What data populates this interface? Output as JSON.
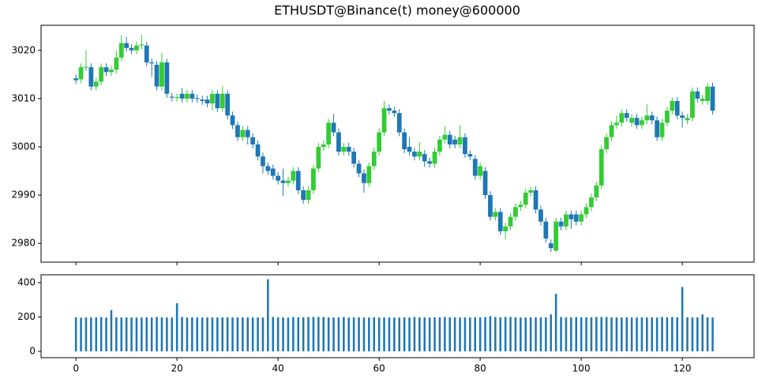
{
  "chart_data": [
    {
      "type": "candlestick",
      "title": "ETHUSDT@Binance(t) money@600000",
      "up_color": "#33cc33",
      "down_color": "#1f77b4",
      "xlim": [
        -6.9,
        134.2
      ],
      "xticks": [
        0,
        20,
        40,
        60,
        80,
        100,
        120
      ],
      "ylim": [
        2976.1,
        3025.2
      ],
      "yticks": [
        2980,
        2990,
        3000,
        3010,
        3020
      ],
      "x": [
        0,
        1,
        2,
        3,
        4,
        5,
        6,
        7,
        8,
        9,
        10,
        11,
        12,
        13,
        14,
        15,
        16,
        17,
        18,
        19,
        20,
        21,
        22,
        23,
        24,
        25,
        26,
        27,
        28,
        29,
        30,
        31,
        32,
        33,
        34,
        35,
        36,
        37,
        38,
        39,
        40,
        41,
        42,
        43,
        44,
        45,
        46,
        47,
        48,
        49,
        50,
        51,
        52,
        53,
        54,
        55,
        56,
        57,
        58,
        59,
        60,
        61,
        62,
        63,
        64,
        65,
        66,
        67,
        68,
        69,
        70,
        71,
        72,
        73,
        74,
        75,
        76,
        77,
        78,
        79,
        80,
        81,
        82,
        83,
        84,
        85,
        86,
        87,
        88,
        89,
        90,
        91,
        92,
        93,
        94,
        95,
        96,
        97,
        98,
        99,
        100,
        101,
        102,
        103,
        104,
        105,
        106,
        107,
        108,
        109,
        110,
        111,
        112,
        113,
        114,
        115,
        116,
        117,
        118,
        119,
        120,
        121,
        122,
        123,
        124,
        125,
        126
      ],
      "open": [
        3014.2,
        3014,
        3016.5,
        3016.5,
        3012.5,
        3013.5,
        3016.5,
        3015.5,
        3016,
        3018.5,
        3021.5,
        3020.5,
        3020,
        3021,
        3021,
        3017.5,
        3017,
        3012.5,
        3017.5,
        3010.4,
        3010.2,
        3011,
        3010,
        3011,
        3010.1,
        3009.8,
        3009.8,
        3009,
        3011,
        3008,
        3011,
        3006.5,
        3004.5,
        3002,
        3003.5,
        3002,
        3000.5,
        2998,
        2996,
        2995.5,
        2994,
        2993,
        2992.5,
        2993,
        2995,
        2991,
        2989,
        2991,
        2995.5,
        3000,
        3000.5,
        3005,
        3003,
        2999,
        3000,
        2999,
        2996.5,
        2994.5,
        2992.5,
        2996,
        2999,
        3003,
        3008,
        3007.5,
        3007,
        3003,
        3000,
        2999,
        2998,
        2998.5,
        2997,
        2996.5,
        2999,
        3001.5,
        3002.5,
        3001.5,
        3000.5,
        3002,
        2998.5,
        2997.5,
        2994,
        2995,
        2990,
        2985.5,
        2986.5,
        2982.5,
        2983.5,
        2985.5,
        2987.5,
        2988,
        2990.5,
        2991,
        2987,
        2984.5,
        2980,
        2978.5,
        2984.5,
        2983.5,
        2986,
        2986,
        2984.5,
        2986,
        2987.5,
        2989.5,
        2992,
        2999.5,
        3002,
        3004.5,
        3005,
        3007,
        3005,
        3006,
        3004.5,
        3005.5,
        3006.5,
        3005.5,
        3002,
        3005,
        3007.5,
        3009.5,
        3006.5,
        3005.5,
        3006,
        3011.5,
        3009.5,
        3009.5,
        3012.5
      ],
      "high": [
        3015,
        3017.3,
        3020,
        3017.3,
        3014.3,
        3017.3,
        3017.3,
        3016.8,
        3020,
        3023.2,
        3022.8,
        3021.3,
        3021.8,
        3023.2,
        3021.8,
        3018.3,
        3017.8,
        3019.5,
        3018.3,
        3011.2,
        3011.1,
        3012.2,
        3011.8,
        3011.8,
        3010.9,
        3010.6,
        3010.6,
        3011.8,
        3011.8,
        3012.6,
        3011.8,
        3007.3,
        3005.3,
        3004.3,
        3004.3,
        3002.8,
        3001.3,
        2998.8,
        2996.8,
        2996.3,
        2994.8,
        2995.5,
        2993.8,
        2995.8,
        2995.8,
        2991.8,
        2991.8,
        2996.3,
        3000.8,
        3001.3,
        3005.8,
        3006.8,
        3003.8,
        3000.8,
        3000.8,
        2999.8,
        2997.3,
        2995.3,
        2996.8,
        2999.8,
        3003.8,
        3009.5,
        3008.8,
        3008.3,
        3007.8,
        3003.8,
        3002,
        2999.8,
        3001,
        2999.3,
        2997.8,
        2999.8,
        3002.3,
        3004.3,
        3003.3,
        3002.3,
        3004.5,
        3002.8,
        2999.3,
        2998.3,
        2996.8,
        2995.8,
        2990.8,
        2987.3,
        2987.3,
        2984.3,
        2986.3,
        2988.3,
        2988.8,
        2991.3,
        2991.8,
        2991.8,
        2987.8,
        2985.3,
        2980.8,
        2985.3,
        2985.3,
        2986.8,
        2986.8,
        2986.8,
        2986.8,
        2988.3,
        2990.3,
        2992.8,
        3000.3,
        3002.8,
        3005.3,
        3006.5,
        3007.8,
        3007.8,
        3006.8,
        3006.8,
        3006.3,
        3008.8,
        3007.3,
        3006.3,
        3005.8,
        3008.3,
        3010.3,
        3010.3,
        3007.3,
        3006.8,
        3012.3,
        3012.3,
        3010.8,
        3013.3,
        3013.3
      ],
      "low": [
        3013,
        3013.2,
        3015.7,
        3011.7,
        3011.7,
        3012.7,
        3014.7,
        3014.7,
        3015.2,
        3017.7,
        3019.7,
        3019.2,
        3019.2,
        3020.2,
        3016.7,
        3014.5,
        3011.7,
        3011.7,
        3010.2,
        3009.4,
        3009.4,
        3009.2,
        3009.2,
        3009.2,
        3009.2,
        3008.7,
        3008.2,
        3007.5,
        3007.2,
        3007.2,
        3005.7,
        3003.7,
        3001.2,
        3001.2,
        3000.5,
        2999.7,
        2997.2,
        2994.5,
        2994.2,
        2993.2,
        2992.2,
        2989.8,
        2991.7,
        2992.2,
        2990.2,
        2988.2,
        2988.2,
        2990.2,
        2994.7,
        2999.2,
        2999.7,
        3002.2,
        2998.2,
        2998.2,
        2998.2,
        2995.7,
        2993.7,
        2990.5,
        2991.7,
        2995.2,
        2998.2,
        3002.2,
        3006.7,
        3006.2,
        3002.2,
        2998.7,
        2998.2,
        2997.2,
        2997.2,
        2995.8,
        2995.7,
        2995.7,
        2998.2,
        3000.7,
        2999.7,
        2999.7,
        2999.7,
        2997.7,
        2997.2,
        2993.2,
        2993.2,
        2989.2,
        2984.7,
        2984.7,
        2981.7,
        2980.8,
        2982.7,
        2984.7,
        2986.7,
        2987.2,
        2989.7,
        2986.2,
        2983.7,
        2980.2,
        2978.2,
        2978.2,
        2982.7,
        2982.7,
        2983,
        2983.7,
        2983.7,
        2985.2,
        2986.7,
        2988.7,
        2991.2,
        2998.7,
        3001.2,
        3003.7,
        3004.2,
        3005.2,
        3004.2,
        3003.7,
        3003.7,
        3004.7,
        3004.7,
        3001.2,
        3001.2,
        3004.2,
        3006.7,
        3005.7,
        3004,
        3004.7,
        3005.2,
        3009.2,
        3008.7,
        3008.7,
        3006.7
      ],
      "close": [
        3013.8,
        3016.5,
        3016.6,
        3012.5,
        3013.5,
        3016.5,
        3015.5,
        3016,
        3018.5,
        3021.5,
        3020.5,
        3020,
        3021,
        3021.2,
        3017.5,
        3017.3,
        3012.5,
        3017.5,
        3011,
        3010.2,
        3010.3,
        3010,
        3011,
        3010,
        3010,
        3009.5,
        3009,
        3011,
        3008,
        3011,
        3006.5,
        3004.5,
        3002,
        3003.5,
        3002,
        3000.5,
        2998,
        2996,
        2995,
        2994,
        2993,
        2992.5,
        2993,
        2995,
        2991,
        2989,
        2991,
        2995.5,
        3000,
        3000.5,
        3005,
        3003,
        2999,
        3000,
        2999,
        2996.5,
        2994.5,
        2992.5,
        2996,
        2999,
        3003,
        3008,
        3007.5,
        3007,
        3003,
        2999.5,
        2999,
        2998,
        2999,
        2997,
        2996.5,
        2999,
        3001.5,
        3002.5,
        3000.5,
        3000.5,
        3002,
        2998.5,
        2998,
        2994,
        2996,
        2990,
        2985.5,
        2986.5,
        2982.5,
        2983.5,
        2985.5,
        2987.5,
        2988,
        2990.5,
        2991,
        2987,
        2984.5,
        2981,
        2979,
        2984.5,
        2983.5,
        2986,
        2985,
        2984.5,
        2986,
        2987.5,
        2989.5,
        2992,
        2999.5,
        3002,
        3004.5,
        3005,
        3007,
        3006,
        3006,
        3004.5,
        3005.5,
        3006.5,
        3005.5,
        3002,
        3005,
        3007.5,
        3009.5,
        3006.5,
        3006,
        3006,
        3011.5,
        3010,
        3010,
        3012.5,
        3007.5
      ]
    },
    {
      "type": "bar",
      "color": "#1f77b4",
      "xlim": [
        -6.9,
        134.2
      ],
      "xticks": [
        0,
        20,
        40,
        60,
        80,
        100,
        120
      ],
      "ylim": [
        -37,
        446
      ],
      "yticks": [
        0,
        200,
        400
      ],
      "x": [
        0,
        1,
        2,
        3,
        4,
        5,
        6,
        7,
        8,
        9,
        10,
        11,
        12,
        13,
        14,
        15,
        16,
        17,
        18,
        19,
        20,
        21,
        22,
        23,
        24,
        25,
        26,
        27,
        28,
        29,
        30,
        31,
        32,
        33,
        34,
        35,
        36,
        37,
        38,
        39,
        40,
        41,
        42,
        43,
        44,
        45,
        46,
        47,
        48,
        49,
        50,
        51,
        52,
        53,
        54,
        55,
        56,
        57,
        58,
        59,
        60,
        61,
        62,
        63,
        64,
        65,
        66,
        67,
        68,
        69,
        70,
        71,
        72,
        73,
        74,
        75,
        76,
        77,
        78,
        79,
        80,
        81,
        82,
        83,
        84,
        85,
        86,
        87,
        88,
        89,
        90,
        91,
        92,
        93,
        94,
        95,
        96,
        97,
        98,
        99,
        100,
        101,
        102,
        103,
        104,
        105,
        106,
        107,
        108,
        109,
        110,
        111,
        112,
        113,
        114,
        115,
        116,
        117,
        118,
        119,
        120,
        121,
        122,
        123,
        124,
        125,
        126
      ],
      "values": [
        198,
        196,
        197,
        197,
        198,
        200,
        197,
        240,
        198,
        197,
        198,
        197,
        197,
        197,
        198,
        197,
        200,
        198,
        197,
        197,
        280,
        200,
        197,
        198,
        197,
        197,
        198,
        197,
        197,
        198,
        198,
        197,
        198,
        197,
        197,
        197,
        198,
        197,
        420,
        200,
        198,
        197,
        197,
        200,
        198,
        198,
        200,
        200,
        200,
        200,
        198,
        197,
        198,
        200,
        197,
        197,
        198,
        197,
        197,
        198,
        197,
        197,
        197,
        197,
        197,
        198,
        197,
        200,
        198,
        198,
        197,
        198,
        198,
        200,
        198,
        198,
        197,
        198,
        197,
        198,
        198,
        200,
        205,
        200,
        198,
        200,
        200,
        198,
        198,
        197,
        198,
        198,
        198,
        198,
        215,
        335,
        200,
        198,
        198,
        200,
        198,
        198,
        198,
        200,
        200,
        200,
        198,
        198,
        197,
        198,
        197,
        197,
        198,
        197,
        198,
        197,
        200,
        198,
        200,
        198,
        375,
        198,
        197,
        198,
        215,
        198,
        197
      ]
    }
  ]
}
